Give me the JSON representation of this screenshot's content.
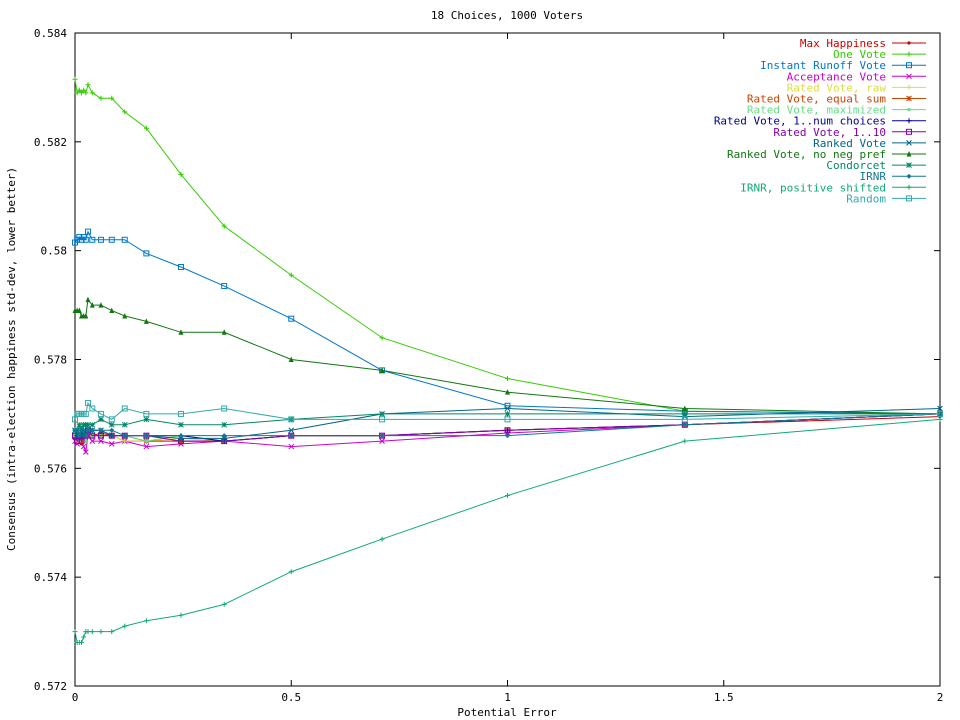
{
  "chart_data": {
    "type": "line",
    "title": "18 Choices, 1000 Voters",
    "xlabel": "Potential Error",
    "ylabel": "Consensus (intra-election happiness std-dev, lower better)",
    "xlim": [
      0,
      2
    ],
    "ylim": [
      0.572,
      0.584
    ],
    "xticks": [
      0,
      0.5,
      1,
      1.5,
      2
    ],
    "xtick_labels": [
      "0",
      "0.5",
      "1",
      "1.5",
      "2"
    ],
    "yticks": [
      0.572,
      0.574,
      0.576,
      0.578,
      0.58,
      0.582,
      0.584
    ],
    "ytick_labels": [
      "0.572",
      "0.574",
      "0.576",
      "0.578",
      "0.58",
      "0.582",
      "0.584"
    ],
    "grid": false,
    "legend_position": "top-right",
    "x": [
      0,
      0.005,
      0.01,
      0.015,
      0.02,
      0.025,
      0.03,
      0.04,
      0.06,
      0.085,
      0.115,
      0.165,
      0.245,
      0.345,
      0.5,
      0.71,
      1.0,
      1.41,
      2.0
    ],
    "series": [
      {
        "name": "Max Happiness",
        "color": "#cc0000",
        "marker": "dot",
        "values": [
          0.57655,
          0.5765,
          0.5766,
          0.57645,
          0.5766,
          0.5765,
          0.5767,
          0.5766,
          0.57665,
          0.5766,
          0.5765,
          0.5765,
          0.5765,
          0.5765,
          0.5766,
          0.5766,
          0.5767,
          0.5768,
          0.57695
        ]
      },
      {
        "name": "One Vote",
        "color": "#33cc00",
        "marker": "plus",
        "values": [
          0.58315,
          0.5829,
          0.58295,
          0.5829,
          0.58295,
          0.5829,
          0.58305,
          0.5829,
          0.5828,
          0.5828,
          0.58255,
          0.58225,
          0.5814,
          0.58045,
          0.57955,
          0.5784,
          0.57765,
          0.57705,
          0.577
        ]
      },
      {
        "name": "Instant Runoff Vote",
        "color": "#0077cc",
        "marker": "square",
        "values": [
          0.58015,
          0.5802,
          0.58025,
          0.5802,
          0.58025,
          0.5802,
          0.58035,
          0.5802,
          0.5802,
          0.5802,
          0.5802,
          0.57995,
          0.5797,
          0.57935,
          0.57875,
          0.5778,
          0.57715,
          0.57705,
          0.577
        ]
      },
      {
        "name": "Acceptance Vote",
        "color": "#cc00cc",
        "marker": "x",
        "values": [
          0.5765,
          0.57645,
          0.5765,
          0.57655,
          0.5764,
          0.5763,
          0.5766,
          0.5765,
          0.5765,
          0.57645,
          0.5765,
          0.5764,
          0.57645,
          0.5765,
          0.5764,
          0.5765,
          0.57665,
          0.5768,
          0.577
        ]
      },
      {
        "name": "Rated Vote, raw",
        "color": "#dddd44",
        "marker": "plus",
        "values": [
          0.5766,
          0.5765,
          0.5766,
          0.5766,
          0.5765,
          0.5765,
          0.5766,
          0.5766,
          0.5766,
          0.5766,
          0.5765,
          0.5765,
          0.57655,
          0.5765,
          0.5766,
          0.5766,
          0.5767,
          0.5768,
          0.577
        ]
      },
      {
        "name": "Rated Vote, equal sum",
        "color": "#cc4400",
        "marker": "star",
        "values": [
          0.5766,
          0.5766,
          0.5766,
          0.5765,
          0.5766,
          0.5766,
          0.5767,
          0.5766,
          0.5766,
          0.5766,
          0.5766,
          0.5765,
          0.5765,
          0.5765,
          0.5766,
          0.5766,
          0.5767,
          0.5768,
          0.577
        ]
      },
      {
        "name": "Rated Vote, maximized",
        "color": "#66dd88",
        "marker": "dot",
        "values": [
          0.5766,
          0.5766,
          0.5765,
          0.5766,
          0.5766,
          0.5765,
          0.5766,
          0.5766,
          0.5766,
          0.5766,
          0.5766,
          0.5765,
          0.5766,
          0.5765,
          0.5766,
          0.5766,
          0.5767,
          0.5768,
          0.577
        ]
      },
      {
        "name": "Rated Vote, 1..num choices",
        "color": "#000099",
        "marker": "plus",
        "values": [
          0.5767,
          0.5766,
          0.5766,
          0.5767,
          0.5767,
          0.5766,
          0.5767,
          0.5767,
          0.5767,
          0.5766,
          0.5766,
          0.5766,
          0.5766,
          0.5765,
          0.5766,
          0.5766,
          0.5767,
          0.5768,
          0.577
        ]
      },
      {
        "name": "Rated Vote, 1..10",
        "color": "#8800aa",
        "marker": "square",
        "values": [
          0.5766,
          0.5765,
          0.5766,
          0.5765,
          0.5766,
          0.5766,
          0.5767,
          0.5766,
          0.5766,
          0.5766,
          0.5766,
          0.5766,
          0.5765,
          0.5765,
          0.5766,
          0.5766,
          0.5767,
          0.5768,
          0.577
        ]
      },
      {
        "name": "Ranked Vote",
        "color": "#006688",
        "marker": "x",
        "values": [
          0.5767,
          0.5766,
          0.5766,
          0.5767,
          0.5766,
          0.5766,
          0.5767,
          0.5767,
          0.5767,
          0.5766,
          0.5766,
          0.5766,
          0.57655,
          0.57655,
          0.5767,
          0.577,
          0.5771,
          0.57695,
          0.5771
        ]
      },
      {
        "name": "Ranked Vote, no neg pref",
        "color": "#117711",
        "marker": "triangle",
        "values": [
          0.5789,
          0.5789,
          0.5789,
          0.5788,
          0.5788,
          0.5788,
          0.5791,
          0.579,
          0.579,
          0.5789,
          0.5788,
          0.5787,
          0.5785,
          0.5785,
          0.578,
          0.5778,
          0.5774,
          0.5771,
          0.577
        ]
      },
      {
        "name": "Condorcet",
        "color": "#008866",
        "marker": "star",
        "values": [
          0.5767,
          0.5767,
          0.5768,
          0.5767,
          0.5768,
          0.5768,
          0.5768,
          0.5768,
          0.5769,
          0.5768,
          0.5768,
          0.5769,
          0.5768,
          0.5768,
          0.5769,
          0.577,
          0.577,
          0.577,
          0.577
        ]
      },
      {
        "name": "IRNR",
        "color": "#117799",
        "marker": "diamond",
        "values": [
          0.5767,
          0.5767,
          0.5766,
          0.5767,
          0.5767,
          0.5766,
          0.5767,
          0.5767,
          0.5767,
          0.5767,
          0.5766,
          0.5766,
          0.5766,
          0.5766,
          0.5766,
          0.5766,
          0.5766,
          0.5768,
          0.577
        ]
      },
      {
        "name": "IRNR, positive shifted",
        "color": "#11aa77",
        "marker": "plus",
        "values": [
          0.573,
          0.5728,
          0.5728,
          0.5728,
          0.5729,
          0.573,
          0.573,
          0.573,
          0.573,
          0.573,
          0.5731,
          0.5732,
          0.5733,
          0.5735,
          0.5741,
          0.5747,
          0.5755,
          0.5765,
          0.5769
        ]
      },
      {
        "name": "Random",
        "color": "#33aaaa",
        "marker": "square",
        "values": [
          0.5769,
          0.577,
          0.577,
          0.577,
          0.577,
          0.577,
          0.5772,
          0.5771,
          0.577,
          0.5769,
          0.5771,
          0.577,
          0.577,
          0.5771,
          0.5769,
          0.5769,
          0.5769,
          0.5769,
          0.577
        ]
      }
    ]
  }
}
